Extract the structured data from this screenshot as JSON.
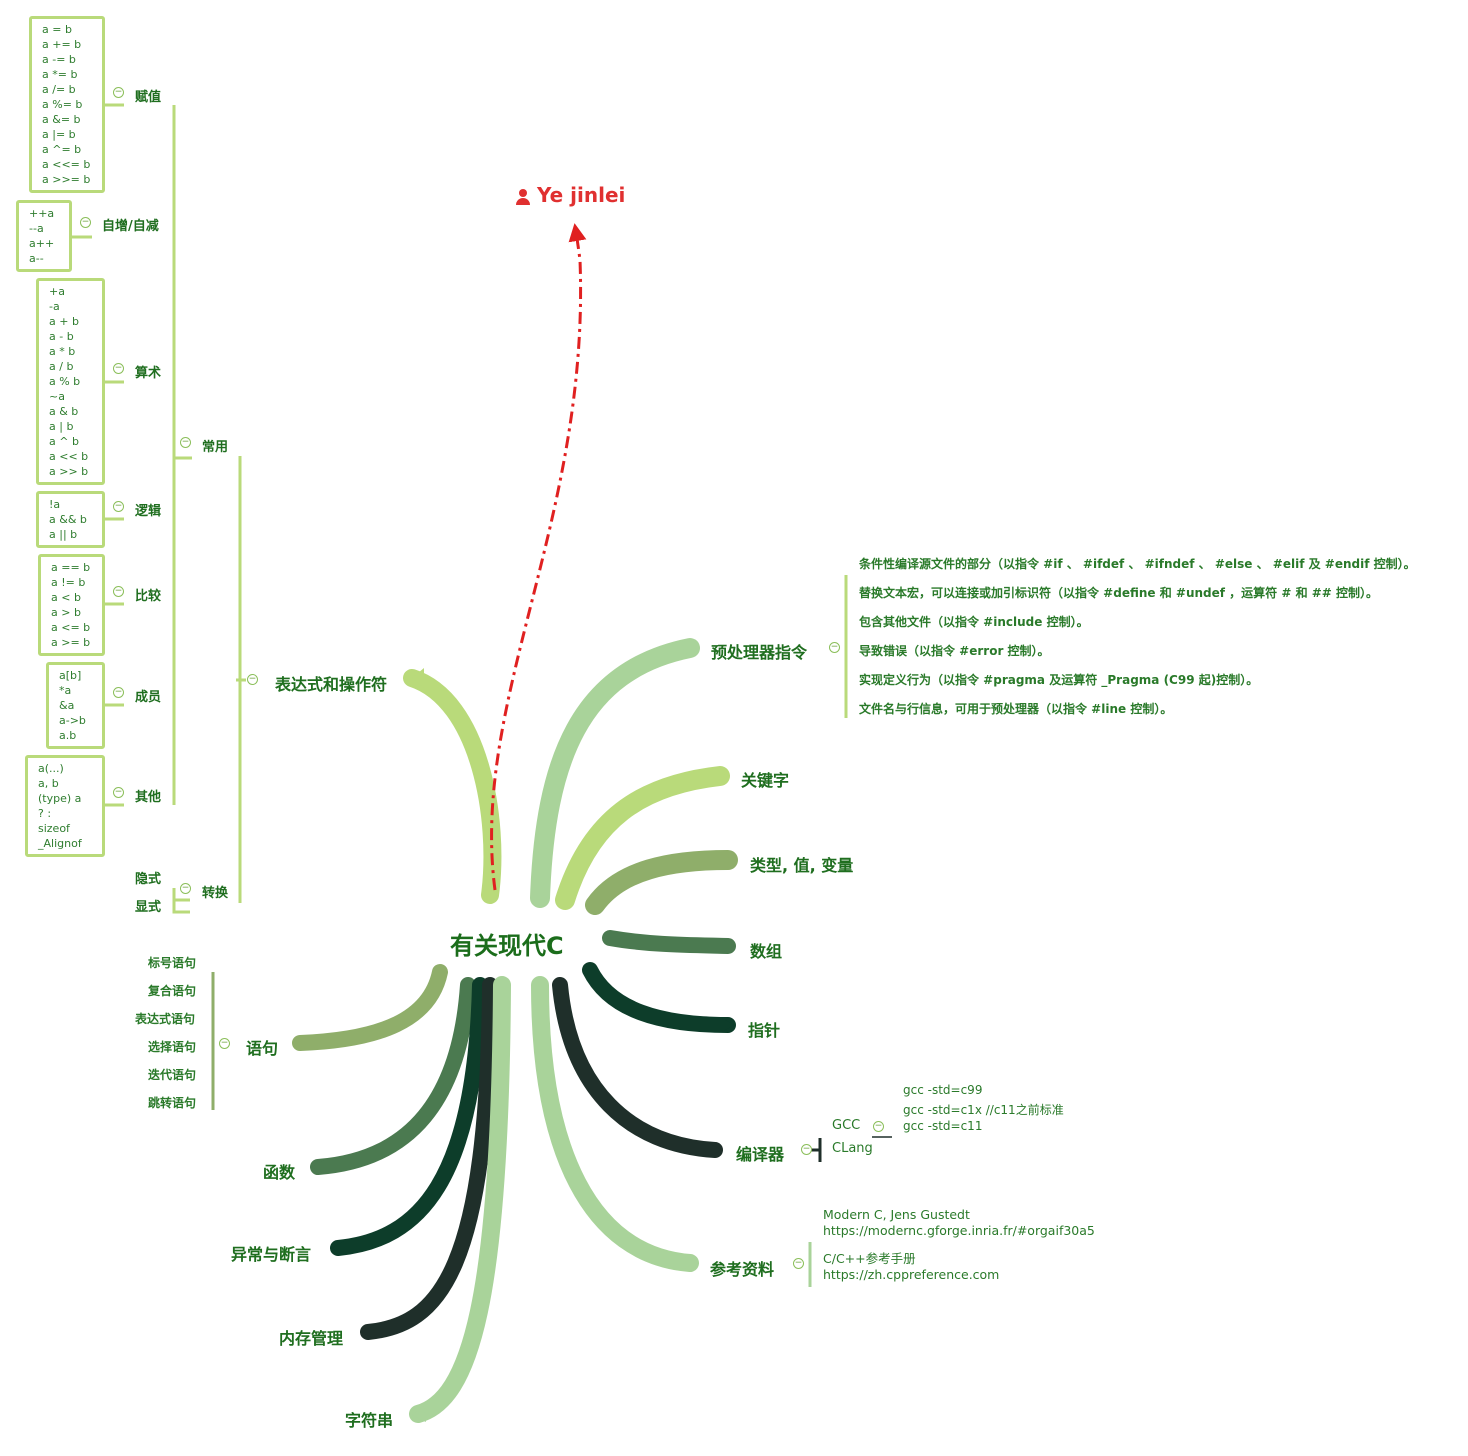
{
  "root": "有关现代C",
  "author": "Ye jinlei",
  "branches": {
    "expr": "表达式和操作符",
    "preproc": "预处理器指令",
    "keywords": "关键字",
    "types": "类型, 值, 变量",
    "arrays": "数组",
    "pointers": "指针",
    "compiler": "编译器",
    "refs": "参考资料",
    "statements": "语句",
    "functions": "函数",
    "exceptions": "异常与断言",
    "memory": "内存管理",
    "strings": "字符串"
  },
  "expr_children": {
    "common": "常用",
    "convert": "转换",
    "implicit": "隐式",
    "explicit": "显式"
  },
  "common_children": {
    "assign": "赋值",
    "incdec": "自增/自减",
    "arith": "算术",
    "logic": "逻辑",
    "compare": "比较",
    "member": "成员",
    "other": "其他"
  },
  "boxes": {
    "assign": [
      "a = b",
      "a += b",
      "a -= b",
      "a *= b",
      "a /= b",
      "a %= b",
      "a &= b",
      "a |= b",
      "a ^= b",
      "a <<= b",
      "a >>= b"
    ],
    "incdec": [
      "++a",
      "--a",
      "a++",
      "a--"
    ],
    "arith": [
      "+a",
      "-a",
      "a + b",
      "a - b",
      "a * b",
      "a / b",
      "a % b",
      "~a",
      "a & b",
      "a | b",
      "a ^ b",
      "a << b",
      "a >> b"
    ],
    "logic": [
      "!a",
      "a && b",
      "a || b"
    ],
    "compare": [
      "a == b",
      "a != b",
      "a < b",
      "a > b",
      "a <= b",
      "a >= b"
    ],
    "member": [
      "a[b]",
      "*a",
      "&a",
      "a->b",
      "a.b"
    ],
    "other": [
      "a(...)",
      "a, b",
      "(type) a",
      "? :",
      "sizeof",
      "_Alignof"
    ]
  },
  "preproc_items": [
    "条件性编译源文件的部分（以指令 #if 、 #ifdef 、 #ifndef 、 #else 、 #elif 及 #endif 控制）。",
    "替换文本宏，可以连接或加引标识符（以指令 #define 和 #undef ，运算符 # 和 ## 控制）。",
    "包含其他文件（以指令 #include 控制）。",
    "导致错误（以指令 #error 控制）。",
    "实现定义行为（以指令 #pragma 及运算符 _Pragma (C99 起)控制）。",
    "文件名与行信息，可用于预处理器（以指令 #line 控制）。"
  ],
  "statement_items": [
    "标号语句",
    "复合语句",
    "表达式语句",
    "选择语句",
    "迭代语句",
    "跳转语句"
  ],
  "compiler_items": {
    "gcc": "GCC",
    "clang": "CLang",
    "gcc_options": [
      "gcc -std=c99",
      "gcc -std=c1x //c11之前标准",
      "gcc -std=c11"
    ]
  },
  "refs_items": [
    [
      "Modern C, Jens Gustedt",
      "https://modernc.gforge.inria.fr/#orgaif30a5"
    ],
    [
      "C/C++参考手册",
      "https://zh.cppreference.com"
    ]
  ],
  "colors": {
    "light_green": "#b9da7a",
    "pale_green": "#a9d39a",
    "mid_green": "#8fae6a",
    "dark_green": "#4b7a50",
    "deep_green": "#0d3d2a",
    "near_black": "#1f2f2a",
    "text_green": "#1f6e1f",
    "author_red": "#e03030"
  },
  "icons": {
    "author": "person-icon",
    "collapse": "minus-circle-icon"
  }
}
